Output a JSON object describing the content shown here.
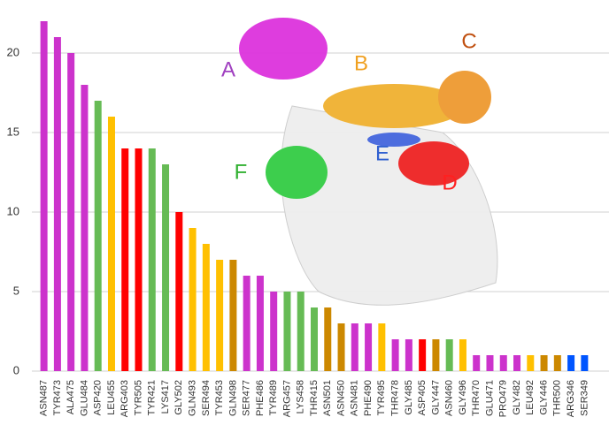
{
  "chart_data": {
    "type": "bar",
    "categories": [
      "ASN487",
      "TYR473",
      "ALA475",
      "GLU484",
      "ASP420",
      "LEU455",
      "ARG403",
      "TYR505",
      "TYR421",
      "LYS417",
      "GLY502",
      "GLN493",
      "SER494",
      "TYR453",
      "GLN498",
      "SER477",
      "PHE486",
      "TYR489",
      "ARG457",
      "LYS458",
      "THR415",
      "ASN501",
      "ASN450",
      "ASN481",
      "PHE490",
      "TYR495",
      "THR478",
      "GLY485",
      "ASP405",
      "GLY447",
      "ASN460",
      "GLY496",
      "THR470",
      "GLU471",
      "PRO479",
      "GLY482",
      "LEU492",
      "GLY446",
      "THR500",
      "ARG346",
      "SER349"
    ],
    "values": [
      22,
      21,
      20,
      18,
      17,
      16,
      14,
      14,
      14,
      13,
      10,
      9,
      8,
      7,
      7,
      6,
      6,
      5,
      5,
      5,
      4,
      4,
      3,
      3,
      3,
      3,
      2,
      2,
      2,
      2,
      2,
      2,
      1,
      1,
      1,
      1,
      1,
      1,
      1,
      1,
      1
    ],
    "colors": [
      "#cc33cc",
      "#cc33cc",
      "#cc33cc",
      "#cc33cc",
      "#66bb55",
      "#ffc000",
      "#ff0000",
      "#ff0000",
      "#66bb55",
      "#66bb55",
      "#ff0000",
      "#ffc000",
      "#ffc000",
      "#ffc000",
      "#cc8800",
      "#cc33cc",
      "#cc33cc",
      "#cc33cc",
      "#66bb55",
      "#66bb55",
      "#66bb55",
      "#cc8800",
      "#cc8800",
      "#cc33cc",
      "#cc33cc",
      "#ffc000",
      "#cc33cc",
      "#cc33cc",
      "#ff0000",
      "#cc8800",
      "#66bb55",
      "#ffc000",
      "#cc33cc",
      "#cc33cc",
      "#cc33cc",
      "#cc33cc",
      "#ffc000",
      "#cc8800",
      "#cc8800",
      "#0055ff",
      "#0055ff"
    ],
    "ylim": [
      0,
      22.5
    ],
    "yticks": [
      0,
      5,
      10,
      15,
      20
    ],
    "grid": true,
    "annotations": [
      {
        "text": "A",
        "color": "#a040c0"
      },
      {
        "text": "B",
        "color": "#f0a020"
      },
      {
        "text": "C",
        "color": "#c05010"
      },
      {
        "text": "D",
        "color": "#ff2020"
      },
      {
        "text": "E",
        "color": "#3060d0"
      },
      {
        "text": "F",
        "color": "#30b030"
      }
    ]
  }
}
